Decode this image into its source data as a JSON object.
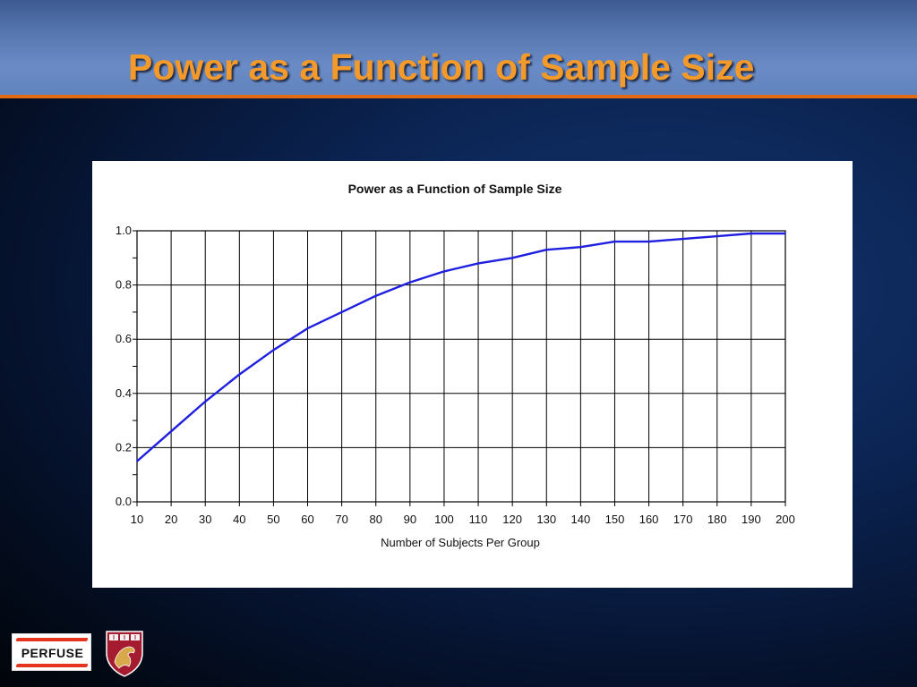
{
  "slide": {
    "title": "Power as a Function of Sample Size",
    "logo_text": "PERFUSE",
    "colors": {
      "title": "#f39a2b",
      "title_bar": "#5677b0",
      "title_rule": "#e26a12",
      "curve": "#1f1fe0"
    },
    "icons": [
      "perfuse-logo-icon",
      "harvard-shield-icon"
    ]
  },
  "chart_data": {
    "type": "line",
    "title": "Power as a Function of Sample Size",
    "xlabel": "Number of Subjects Per Group",
    "ylabel": "",
    "xlim": [
      10,
      200
    ],
    "ylim": [
      0,
      1.0
    ],
    "xticks": [
      10,
      20,
      30,
      40,
      50,
      60,
      70,
      80,
      90,
      100,
      110,
      120,
      130,
      140,
      150,
      160,
      170,
      180,
      190,
      200
    ],
    "xtick_labels": [
      "10",
      "20",
      "30",
      "40",
      "50",
      "60",
      "70",
      "80",
      "90",
      "100",
      "110",
      "120",
      "130",
      "140",
      "150",
      "160",
      "170",
      "180",
      "190",
      "200"
    ],
    "yticks": [
      0.0,
      0.2,
      0.4,
      0.6,
      0.8,
      1.0
    ],
    "ytick_labels": [
      "0.0",
      "0.2",
      "0.4",
      "0.6",
      "0.8",
      "1.0"
    ],
    "grid": true,
    "x": [
      10,
      20,
      30,
      40,
      50,
      60,
      70,
      80,
      90,
      100,
      110,
      120,
      130,
      140,
      150,
      160,
      170,
      180,
      190,
      200
    ],
    "series": [
      {
        "values": [
          0.15,
          0.26,
          0.37,
          0.47,
          0.56,
          0.64,
          0.7,
          0.76,
          0.81,
          0.85,
          0.88,
          0.9,
          0.93,
          0.94,
          0.96,
          0.96,
          0.97,
          0.98,
          0.99,
          0.99
        ]
      }
    ]
  }
}
